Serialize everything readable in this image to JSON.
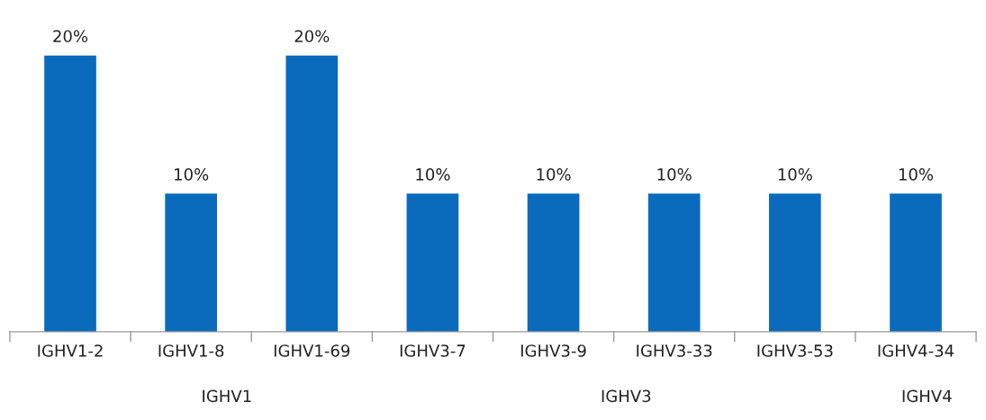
{
  "chart_data": {
    "type": "bar",
    "categories": [
      "IGHV1-2",
      "IGHV1-8",
      "IGHV1-69",
      "IGHV3-7",
      "IGHV3-9",
      "IGHV3-33",
      "IGHV3-53",
      "IGHV4-34"
    ],
    "values": [
      20,
      10,
      20,
      10,
      10,
      10,
      10,
      10
    ],
    "color": "#0a6bbd",
    "value_labels": [
      "20%",
      "10%",
      "20%",
      "10%",
      "10%",
      "10%",
      "10%",
      "10%"
    ],
    "annotations": [
      "IGHV1",
      "IGHV3",
      "IGHV4"
    ],
    "grid": false,
    "legend": false
  }
}
